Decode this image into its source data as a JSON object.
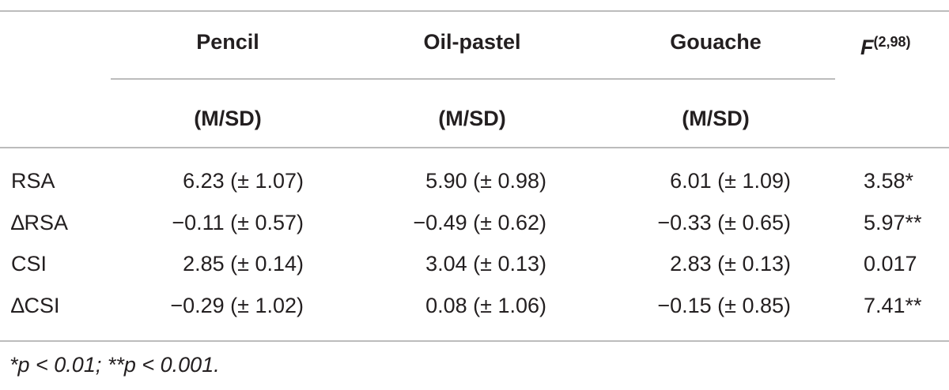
{
  "table": {
    "headers": [
      "Pencil",
      "Oil-pastel",
      "Gouache"
    ],
    "subheaders": [
      "(M/SD)",
      "(M/SD)",
      "(M/SD)"
    ],
    "stat_header": {
      "symbol": "F",
      "superscript": "(2,98)"
    },
    "rows": [
      [
        "RSA",
        "6.23 (± 1.07)",
        "5.90 (± 0.98)",
        "6.01 (± 1.09)",
        "3.58*"
      ],
      [
        "∆RSA",
        "−0.11 (± 0.57)",
        "−0.49 (± 0.62)",
        "−0.33 (± 0.65)",
        "5.97**"
      ],
      [
        "CSI",
        "2.85 (± 0.14)",
        "3.04 (± 0.13)",
        "2.83 (± 0.13)",
        "0.017"
      ],
      [
        "∆CSI",
        "−0.29 (± 1.02)",
        "0.08 (± 1.06)",
        "−0.15 (± 0.85)",
        "7.41**"
      ]
    ],
    "footnote": "*p < 0.01; **p < 0.001."
  }
}
